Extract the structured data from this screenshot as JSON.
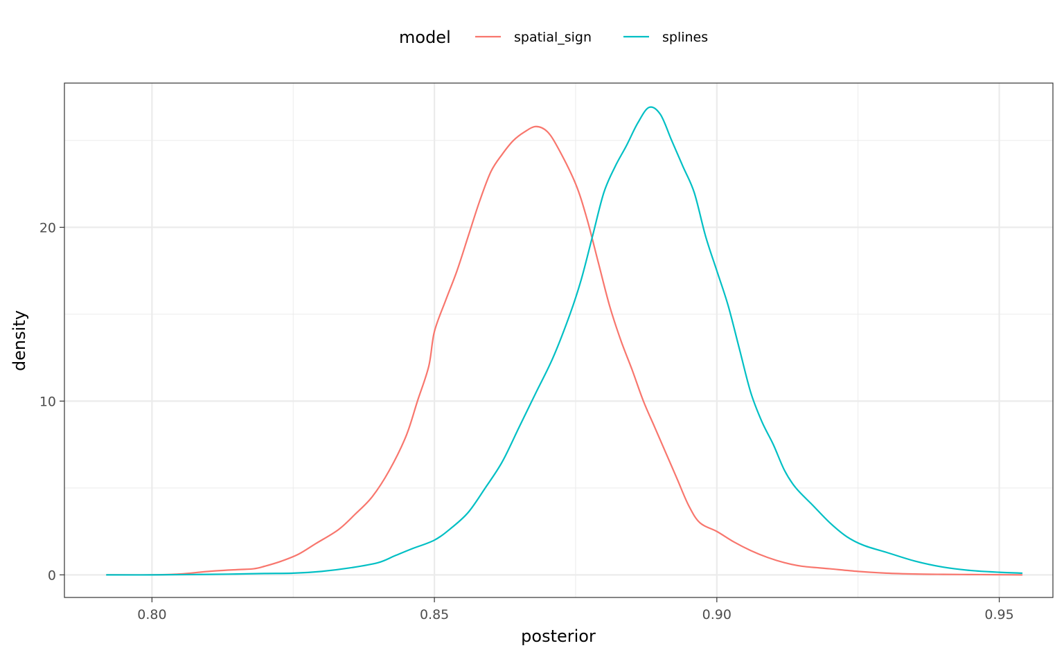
{
  "chart_data": {
    "type": "line",
    "xlabel": "posterior",
    "ylabel": "density",
    "xlim": [
      0.7845,
      0.9595
    ],
    "ylim": [
      -1.3,
      28.3
    ],
    "x_ticks": [
      0.8,
      0.85,
      0.9,
      0.95
    ],
    "x_tick_labels": [
      "0.80",
      "0.85",
      "0.90",
      "0.95"
    ],
    "y_ticks": [
      0,
      10,
      20
    ],
    "y_tick_labels": [
      "0",
      "10",
      "20"
    ],
    "y_minor_ticks": [
      5,
      15,
      25
    ],
    "grid": true,
    "legend": {
      "title": "model",
      "position": "top"
    },
    "series": [
      {
        "name": "spatial_sign",
        "color": "#F8766D",
        "points": [
          [
            0.792,
            0.0
          ],
          [
            0.8,
            0.0
          ],
          [
            0.805,
            0.05
          ],
          [
            0.81,
            0.2
          ],
          [
            0.815,
            0.3
          ],
          [
            0.818,
            0.35
          ],
          [
            0.82,
            0.5
          ],
          [
            0.823,
            0.8
          ],
          [
            0.826,
            1.2
          ],
          [
            0.829,
            1.8
          ],
          [
            0.833,
            2.6
          ],
          [
            0.836,
            3.5
          ],
          [
            0.839,
            4.5
          ],
          [
            0.842,
            6.0
          ],
          [
            0.845,
            8.0
          ],
          [
            0.847,
            10.0
          ],
          [
            0.849,
            12.0
          ],
          [
            0.85,
            14.0
          ],
          [
            0.852,
            15.8
          ],
          [
            0.854,
            17.5
          ],
          [
            0.856,
            19.5
          ],
          [
            0.858,
            21.5
          ],
          [
            0.86,
            23.2
          ],
          [
            0.862,
            24.2
          ],
          [
            0.864,
            25.0
          ],
          [
            0.866,
            25.5
          ],
          [
            0.868,
            25.8
          ],
          [
            0.87,
            25.5
          ],
          [
            0.872,
            24.5
          ],
          [
            0.875,
            22.5
          ],
          [
            0.877,
            20.5
          ],
          [
            0.879,
            18.0
          ],
          [
            0.881,
            15.5
          ],
          [
            0.883,
            13.5
          ],
          [
            0.885,
            11.8
          ],
          [
            0.887,
            10.0
          ],
          [
            0.889,
            8.5
          ],
          [
            0.891,
            7.0
          ],
          [
            0.893,
            5.5
          ],
          [
            0.895,
            4.0
          ],
          [
            0.897,
            3.0
          ],
          [
            0.9,
            2.5
          ],
          [
            0.903,
            1.9
          ],
          [
            0.906,
            1.4
          ],
          [
            0.909,
            1.0
          ],
          [
            0.912,
            0.7
          ],
          [
            0.915,
            0.5
          ],
          [
            0.92,
            0.35
          ],
          [
            0.925,
            0.2
          ],
          [
            0.93,
            0.1
          ],
          [
            0.935,
            0.05
          ],
          [
            0.94,
            0.03
          ],
          [
            0.945,
            0.02
          ],
          [
            0.95,
            0.01
          ],
          [
            0.954,
            0.0
          ]
        ]
      },
      {
        "name": "splines",
        "color": "#00BFC4",
        "points": [
          [
            0.792,
            0.0
          ],
          [
            0.8,
            0.0
          ],
          [
            0.81,
            0.03
          ],
          [
            0.815,
            0.05
          ],
          [
            0.82,
            0.08
          ],
          [
            0.825,
            0.1
          ],
          [
            0.83,
            0.2
          ],
          [
            0.835,
            0.4
          ],
          [
            0.84,
            0.7
          ],
          [
            0.843,
            1.1
          ],
          [
            0.846,
            1.5
          ],
          [
            0.85,
            2.0
          ],
          [
            0.853,
            2.7
          ],
          [
            0.856,
            3.6
          ],
          [
            0.859,
            5.0
          ],
          [
            0.862,
            6.5
          ],
          [
            0.865,
            8.5
          ],
          [
            0.868,
            10.5
          ],
          [
            0.871,
            12.5
          ],
          [
            0.874,
            15.0
          ],
          [
            0.876,
            17.0
          ],
          [
            0.878,
            19.5
          ],
          [
            0.88,
            22.0
          ],
          [
            0.882,
            23.5
          ],
          [
            0.884,
            24.7
          ],
          [
            0.886,
            26.0
          ],
          [
            0.888,
            26.9
          ],
          [
            0.89,
            26.5
          ],
          [
            0.892,
            25.0
          ],
          [
            0.894,
            23.5
          ],
          [
            0.896,
            22.0
          ],
          [
            0.898,
            19.5
          ],
          [
            0.9,
            17.5
          ],
          [
            0.902,
            15.5
          ],
          [
            0.904,
            13.0
          ],
          [
            0.906,
            10.5
          ],
          [
            0.908,
            8.8
          ],
          [
            0.91,
            7.5
          ],
          [
            0.912,
            6.0
          ],
          [
            0.914,
            5.0
          ],
          [
            0.917,
            4.0
          ],
          [
            0.92,
            3.0
          ],
          [
            0.923,
            2.2
          ],
          [
            0.926,
            1.7
          ],
          [
            0.93,
            1.3
          ],
          [
            0.935,
            0.8
          ],
          [
            0.94,
            0.45
          ],
          [
            0.945,
            0.25
          ],
          [
            0.95,
            0.15
          ],
          [
            0.954,
            0.1
          ]
        ]
      }
    ]
  }
}
